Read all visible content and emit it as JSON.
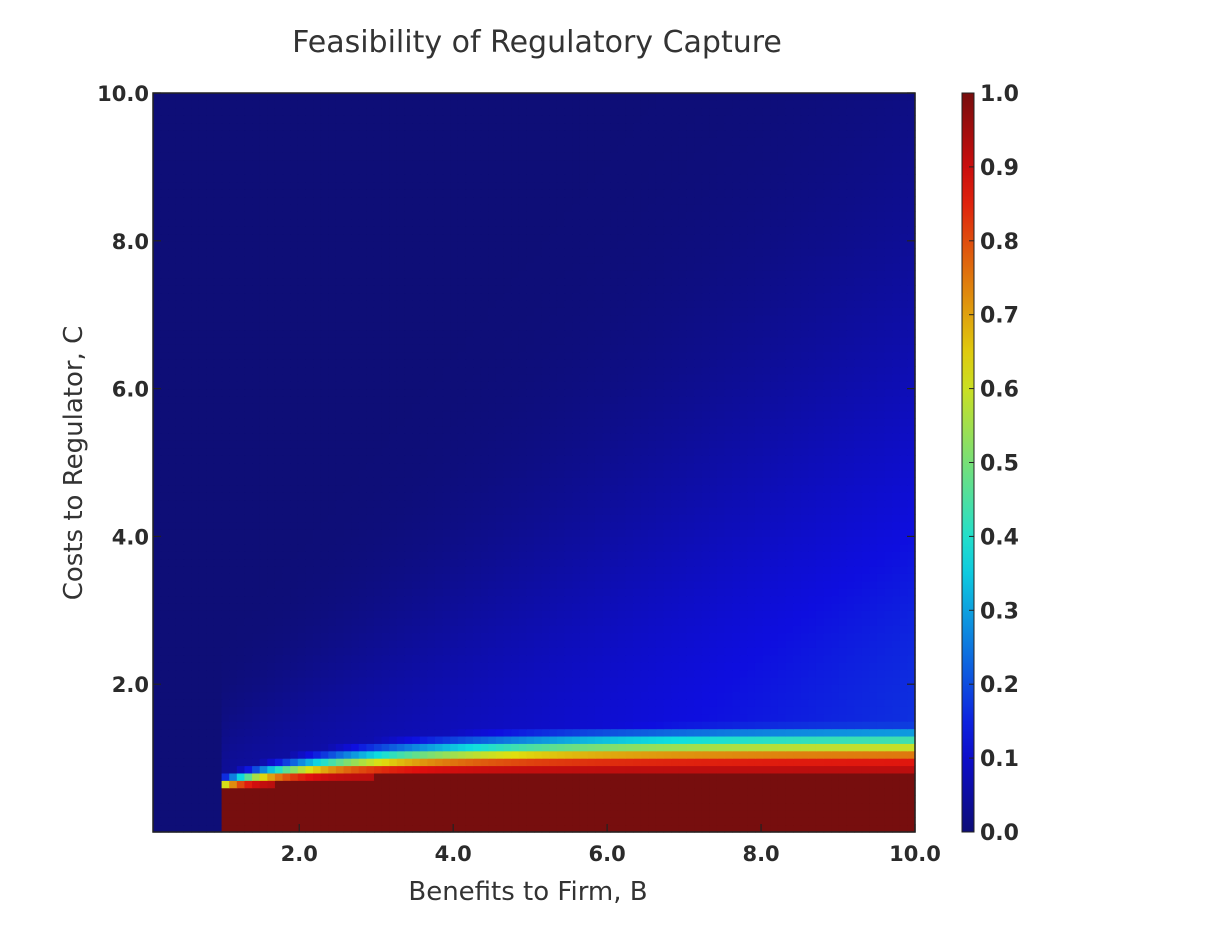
{
  "chart_data": {
    "type": "heatmap",
    "title": "Feasibility of Regulatory Capture",
    "xlabel": "Benefits to Firm, B",
    "ylabel": "Costs to Regulator, C",
    "xlim": [
      0.1,
      10.0
    ],
    "ylim": [
      0.0,
      10.0
    ],
    "x_ticks": [
      2.0,
      4.0,
      6.0,
      8.0,
      10.0
    ],
    "x_tick_labels": [
      "2.0",
      "4.0",
      "6.0",
      "8.0",
      "10.0"
    ],
    "y_ticks": [
      2.0,
      4.0,
      6.0,
      8.0,
      10.0
    ],
    "y_tick_labels": [
      "2.0",
      "4.0",
      "6.0",
      "8.0",
      "10.0"
    ],
    "colorbar": {
      "min": 0.0,
      "max": 1.0,
      "ticks": [
        0.0,
        0.1,
        0.2,
        0.3,
        0.4,
        0.5,
        0.6,
        0.7,
        0.8,
        0.9,
        1.0
      ],
      "tick_labels": [
        "0.0",
        "0.1",
        "0.2",
        "0.3",
        "0.4",
        "0.5",
        "0.6",
        "0.7",
        "0.8",
        "0.9",
        "1.0"
      ],
      "colormap": "jet"
    },
    "grid_resolution": [
      100,
      100
    ],
    "feasible_region": "values are 0 for B < 1.0; for B >= 1.0 values near 1.0 when C is below about 0.8 and decay toward 0 as C grows, with a wider spread at larger B",
    "grid": false,
    "legend": "colorbar right"
  }
}
